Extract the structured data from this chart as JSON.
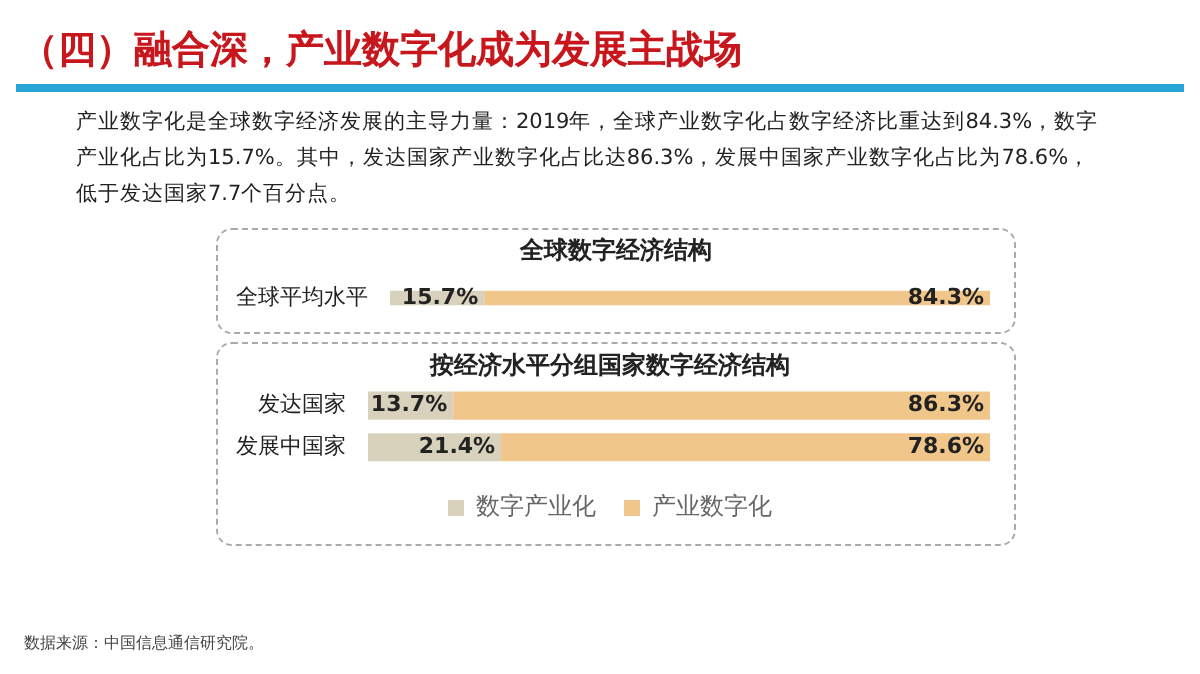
{
  "chart_data": [
    {
      "type": "bar",
      "title": "（四）融合深，产业数字化成为发展主战场",
      "subtitle": "产业数字化是全球数字经济发展的主导力量：2019年，全球产业数字化占数字经济比重达到84.3%，数字产业化占比为15.7%。其中，发达国家产业数字化占比达86.3%，发展中国家产业数字化占比为78.6%，低于发达国家7.7个百分点。",
      "annotations": [
        "全球数字经济结构"
      ],
      "orientation": "horizontal",
      "stacked": true,
      "categories": [
        "全球平均水平"
      ],
      "tick_labels": "y",
      "legend": false,
      "series": [
        {
          "color": "#d8d2bd",
          "values": [
            15.7
          ],
          "value_labels": [
            "15.7%"
          ]
        },
        {
          "color": "#f0c68a",
          "values": [
            84.3
          ],
          "value_labels": [
            "84.3%"
          ]
        }
      ]
    },
    {
      "type": "bar",
      "title": "按经济水平分组国家数字经济结构",
      "annotations": [
        "数据来源：中国信息通信研究院。"
      ],
      "orientation": "horizontal",
      "stacked": true,
      "categories": [
        "发达国家",
        "发展中国家"
      ],
      "tick_labels": "y",
      "legend": "bottom",
      "series": [
        {
          "name": "数字产业化",
          "color": "#d8d2bd",
          "values": [
            13.7,
            21.4
          ],
          "value_labels": [
            "13.7%",
            "21.4%"
          ]
        },
        {
          "name": "产业数字化",
          "color": "#f0c68a",
          "values": [
            86.3,
            78.6
          ],
          "value_labels": [
            "86.3%",
            "78.6%"
          ]
        }
      ]
    }
  ]
}
